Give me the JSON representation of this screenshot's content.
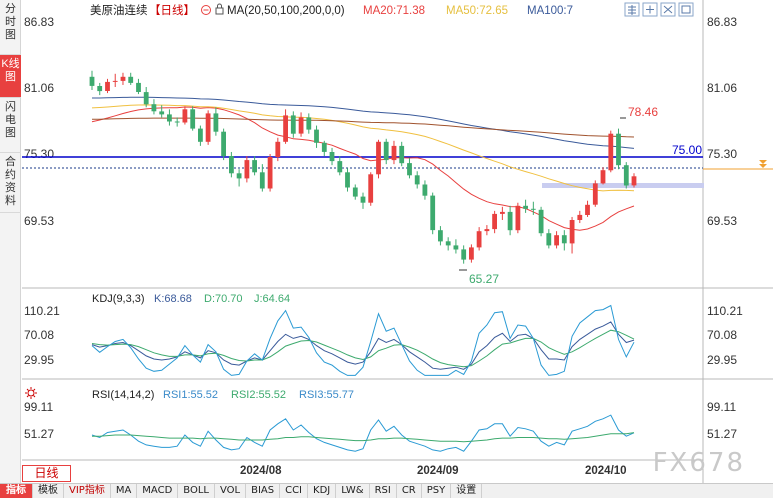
{
  "left_tabs": [
    {
      "label": "分时图",
      "active": false
    },
    {
      "label": "K线图",
      "active": true
    },
    {
      "label": "闪电图",
      "active": false
    },
    {
      "label": "合约资料",
      "active": false
    }
  ],
  "header": {
    "instrument": "美原油连续",
    "period": "【日线】",
    "ma_params": "MA(20,50,100,200,0,0)",
    "ma20": "MA20:71.38",
    "ma50": "MA50:72.65",
    "ma100": "MA100:7"
  },
  "price_axis": [
    "86.83",
    "81.06",
    "75.30",
    "69.53"
  ],
  "price_axis_right": [
    "86.83",
    "81.06",
    "75.30",
    "69.53"
  ],
  "price_notes": {
    "high": "78.46",
    "low": "65.27",
    "line_label": "75.00"
  },
  "kdj": {
    "header": "KDJ(9,3,3)",
    "k": "K:68.68",
    "d": "D:70.70",
    "j": "J:64.64",
    "axis": [
      "110.21",
      "70.08",
      "29.95"
    ]
  },
  "rsi": {
    "header": "RSI(14,14,2)",
    "rsi1": "RSI1:55.52",
    "rsi2": "RSI2:55.52",
    "rsi3": "RSI3:55.77",
    "axis": [
      "99.11",
      "51.27"
    ]
  },
  "date_axis": [
    "2024/08",
    "2024/09",
    "2024/10"
  ],
  "period_label": "日线",
  "toolbar": [
    "指标",
    "模板",
    "VIP指标",
    "MA",
    "MACD",
    "BOLL",
    "VOL",
    "BIAS",
    "CCI",
    "KDJ",
    "LW&",
    "RSI",
    "CR",
    "PSY",
    "设置"
  ],
  "watermark": "FX678",
  "colors": {
    "up": "#e8403f",
    "down": "#3daa6e",
    "ma20": "#e8403f",
    "ma50": "#f0c040",
    "ma100": "#3a5a9a",
    "ma200": "#a0522d",
    "h_line": "#0000cc"
  },
  "chart_data": {
    "type": "candlestick",
    "ylim": [
      63.0,
      89.0
    ],
    "price_level_line": 75.0,
    "candles": [
      [
        83.6,
        84.2,
        82.3,
        82.7
      ],
      [
        82.7,
        83.0,
        81.8,
        82.2
      ],
      [
        82.2,
        83.4,
        82.0,
        83.1
      ],
      [
        83.1,
        83.9,
        82.6,
        83.2
      ],
      [
        83.2,
        84.0,
        82.8,
        83.6
      ],
      [
        83.6,
        84.0,
        82.8,
        83.0
      ],
      [
        83.0,
        83.4,
        81.9,
        82.1
      ],
      [
        82.1,
        82.6,
        80.6,
        80.9
      ],
      [
        80.9,
        81.4,
        79.9,
        80.2
      ],
      [
        80.2,
        80.8,
        79.6,
        79.9
      ],
      [
        79.9,
        80.4,
        78.8,
        79.2
      ],
      [
        79.2,
        79.6,
        78.7,
        79.1
      ],
      [
        79.1,
        80.7,
        78.9,
        80.4
      ],
      [
        80.4,
        80.7,
        78.3,
        78.5
      ],
      [
        78.5,
        78.8,
        76.8,
        77.2
      ],
      [
        77.2,
        80.3,
        76.9,
        80.0
      ],
      [
        80.0,
        80.6,
        77.8,
        78.2
      ],
      [
        78.2,
        78.5,
        75.4,
        75.8
      ],
      [
        75.8,
        76.2,
        73.7,
        74.1
      ],
      [
        74.1,
        74.5,
        72.8,
        73.6
      ],
      [
        73.6,
        75.8,
        73.2,
        75.4
      ],
      [
        75.4,
        75.8,
        73.9,
        74.2
      ],
      [
        74.2,
        75.0,
        72.3,
        72.6
      ],
      [
        72.6,
        76.0,
        72.3,
        75.7
      ],
      [
        75.7,
        77.6,
        75.3,
        77.2
      ],
      [
        77.2,
        80.4,
        77.0,
        79.8
      ],
      [
        79.8,
        80.2,
        77.6,
        78.0
      ],
      [
        78.0,
        80.1,
        77.7,
        79.6
      ],
      [
        79.6,
        80.0,
        78.0,
        78.4
      ],
      [
        78.4,
        78.8,
        76.6,
        77.1
      ],
      [
        77.1,
        77.3,
        75.8,
        76.2
      ],
      [
        76.2,
        76.6,
        74.9,
        75.3
      ],
      [
        75.3,
        75.8,
        73.9,
        74.2
      ],
      [
        74.2,
        74.6,
        72.3,
        72.7
      ],
      [
        72.7,
        73.0,
        71.5,
        71.8
      ],
      [
        71.8,
        72.2,
        70.6,
        71.2
      ],
      [
        71.2,
        74.2,
        70.9,
        74.0
      ],
      [
        74.0,
        77.4,
        73.6,
        77.2
      ],
      [
        77.2,
        77.5,
        75.0,
        75.4
      ],
      [
        75.4,
        77.3,
        75.0,
        76.8
      ],
      [
        76.8,
        77.2,
        74.8,
        75.1
      ],
      [
        75.1,
        75.6,
        73.6,
        73.9
      ],
      [
        73.9,
        74.3,
        72.6,
        73.0
      ],
      [
        73.0,
        73.4,
        71.5,
        71.9
      ],
      [
        71.9,
        72.2,
        68.1,
        68.5
      ],
      [
        68.5,
        68.9,
        67.0,
        67.4
      ],
      [
        67.4,
        67.8,
        66.5,
        67.0
      ],
      [
        67.0,
        67.6,
        66.2,
        66.6
      ],
      [
        66.6,
        67.0,
        65.2,
        65.6
      ],
      [
        65.6,
        67.1,
        65.3,
        66.8
      ],
      [
        66.8,
        68.8,
        66.5,
        68.4
      ],
      [
        68.4,
        69.0,
        68.0,
        68.6
      ],
      [
        68.6,
        70.4,
        68.2,
        70.1
      ],
      [
        70.1,
        70.8,
        69.5,
        70.3
      ],
      [
        70.3,
        70.9,
        68.0,
        68.5
      ],
      [
        68.5,
        71.2,
        68.2,
        70.9
      ],
      [
        70.9,
        71.5,
        70.2,
        70.6
      ],
      [
        70.6,
        71.3,
        70.0,
        70.5
      ],
      [
        70.5,
        70.8,
        67.9,
        68.2
      ],
      [
        68.2,
        68.6,
        66.7,
        67.0
      ],
      [
        67.0,
        68.4,
        66.7,
        68.0
      ],
      [
        68.0,
        68.5,
        66.5,
        67.2
      ],
      [
        67.2,
        69.8,
        66.2,
        69.5
      ],
      [
        69.5,
        70.4,
        69.2,
        70.0
      ],
      [
        70.0,
        71.4,
        69.8,
        71.0
      ],
      [
        71.0,
        73.4,
        70.8,
        73.1
      ],
      [
        73.1,
        74.7,
        73.0,
        74.4
      ],
      [
        74.4,
        78.3,
        74.2,
        78.0
      ],
      [
        78.0,
        78.5,
        74.5,
        74.9
      ],
      [
        74.9,
        75.2,
        72.6,
        72.9
      ],
      [
        72.9,
        74.1,
        72.7,
        73.8
      ]
    ],
    "kdj_k": [
      60,
      55,
      58,
      62,
      64,
      58,
      48,
      38,
      32,
      30,
      32,
      36,
      46,
      40,
      34,
      48,
      44,
      30,
      22,
      20,
      28,
      34,
      30,
      48,
      66,
      80,
      72,
      76,
      70,
      58,
      48,
      42,
      34,
      26,
      22,
      26,
      46,
      72,
      64,
      70,
      60,
      46,
      36,
      26,
      14,
      12,
      14,
      16,
      12,
      22,
      46,
      58,
      74,
      82,
      66,
      78,
      80,
      72,
      50,
      32,
      32,
      30,
      56,
      70,
      80,
      90,
      96,
      104,
      80,
      64,
      68.68
    ],
    "kdj_d": [
      62,
      60,
      59,
      60,
      61,
      60,
      56,
      50,
      44,
      40,
      37,
      37,
      40,
      40,
      38,
      42,
      43,
      39,
      33,
      29,
      28,
      30,
      30,
      36,
      46,
      57,
      62,
      67,
      68,
      65,
      59,
      53,
      47,
      40,
      34,
      31,
      36,
      48,
      53,
      59,
      60,
      55,
      49,
      41,
      32,
      25,
      21,
      19,
      17,
      19,
      28,
      38,
      50,
      61,
      63,
      68,
      72,
      72,
      65,
      54,
      47,
      41,
      46,
      54,
      63,
      72,
      80,
      88,
      85,
      78,
      70.7
    ],
    "kdj_j": [
      58,
      45,
      56,
      66,
      70,
      54,
      32,
      14,
      8,
      10,
      22,
      34,
      58,
      40,
      26,
      60,
      46,
      12,
      0,
      2,
      28,
      42,
      30,
      72,
      106,
      126,
      92,
      94,
      74,
      44,
      26,
      20,
      8,
      0,
      0,
      16,
      66,
      120,
      86,
      92,
      60,
      28,
      10,
      0,
      0,
      0,
      0,
      10,
      2,
      28,
      82,
      98,
      122,
      124,
      72,
      98,
      96,
      72,
      20,
      0,
      2,
      8,
      76,
      102,
      114,
      126,
      128,
      136,
      70,
      36,
      64.64
    ],
    "kdj_ylim": [
      -5,
      135
    ],
    "rsi1": [
      52,
      48,
      56,
      58,
      60,
      52,
      42,
      36,
      34,
      32,
      32,
      34,
      52,
      40,
      34,
      58,
      44,
      32,
      28,
      30,
      48,
      40,
      34,
      60,
      70,
      78,
      60,
      68,
      56,
      46,
      40,
      36,
      32,
      28,
      26,
      30,
      60,
      76,
      58,
      66,
      52,
      42,
      38,
      34,
      28,
      26,
      30,
      32,
      26,
      42,
      60,
      62,
      70,
      70,
      50,
      64,
      62,
      58,
      42,
      34,
      40,
      36,
      58,
      62,
      66,
      74,
      78,
      84,
      60,
      50,
      55.52
    ],
    "rsi3": [
      50,
      50,
      51,
      52,
      52,
      52,
      51,
      50,
      49,
      48,
      47,
      47,
      47,
      47,
      46,
      47,
      47,
      46,
      45,
      44,
      44,
      44,
      44,
      45,
      46,
      48,
      48,
      49,
      49,
      48,
      47,
      46,
      45,
      44,
      43,
      43,
      44,
      46,
      46,
      47,
      47,
      46,
      45,
      44,
      43,
      42,
      42,
      42,
      41,
      42,
      43,
      44,
      46,
      47,
      47,
      48,
      48,
      48,
      47,
      46,
      46,
      45,
      46,
      47,
      48,
      50,
      52,
      54,
      54,
      54,
      55.77
    ],
    "rsi_ylim": [
      15,
      105
    ]
  }
}
